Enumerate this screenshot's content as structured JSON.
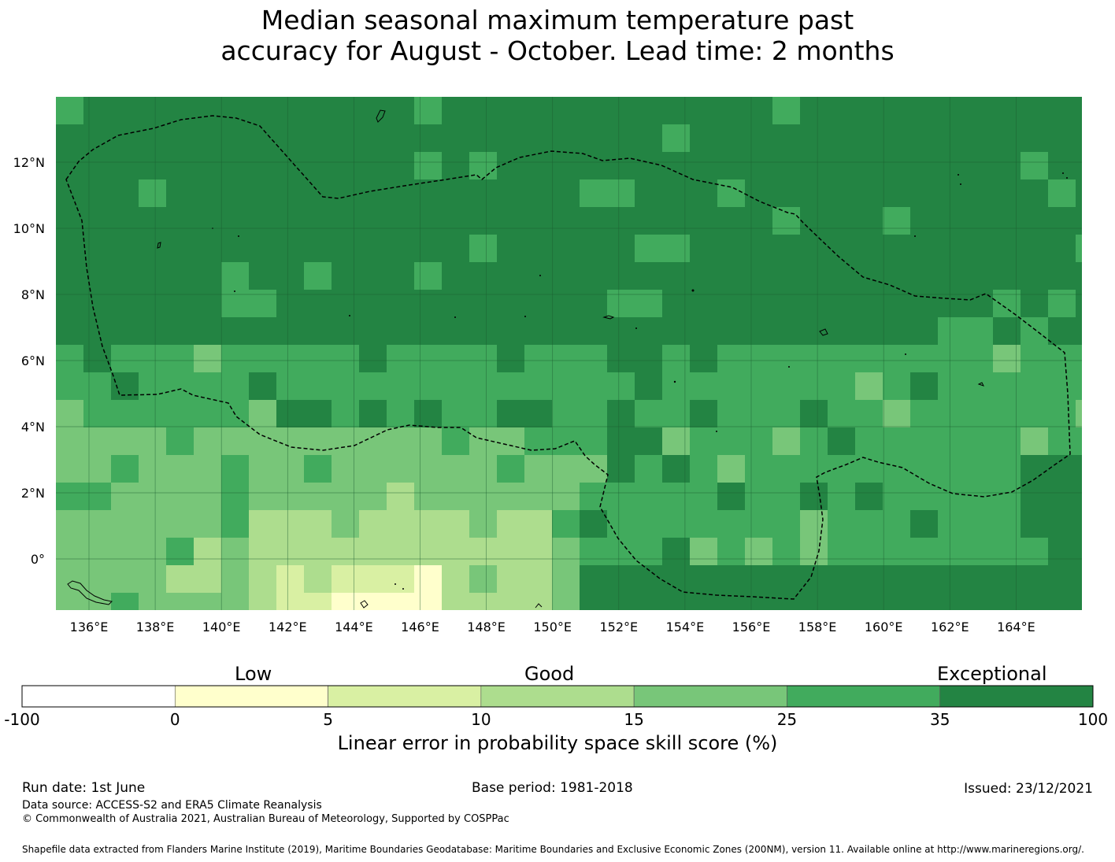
{
  "title_line1": "Median seasonal maximum temperature past",
  "title_line2": "accuracy for August - October. Lead time: 2 months",
  "map": {
    "lon_range": [
      135,
      166
    ],
    "lat_range": [
      -1.5,
      14
    ],
    "cell_size_deg": 0.8333,
    "lon_ticks": [
      "136°E",
      "138°E",
      "140°E",
      "142°E",
      "144°E",
      "146°E",
      "148°E",
      "150°E",
      "152°E",
      "154°E",
      "156°E",
      "158°E",
      "160°E",
      "162°E",
      "164°E"
    ],
    "lat_ticks": [
      "12°N",
      "10°N",
      "8°N",
      "6°N",
      "4°N",
      "2°N",
      "0°"
    ],
    "gridlines": true,
    "boundary": "dashed",
    "coastline_color": "#000000"
  },
  "colorbar": {
    "categories": [
      {
        "label": "Low"
      },
      {
        "label": "Good"
      },
      {
        "label": "Exceptional"
      }
    ],
    "bins": [
      {
        "from": "-100",
        "to": "0",
        "color": "#ffffff"
      },
      {
        "from": "0",
        "to": "5",
        "color": "#ffffcc"
      },
      {
        "from": "5",
        "to": "10",
        "color": "#d9f0a3"
      },
      {
        "from": "10",
        "to": "15",
        "color": "#addd8e"
      },
      {
        "from": "15",
        "to": "25",
        "color": "#78c679"
      },
      {
        "from": "25",
        "to": "35",
        "color": "#41ab5d"
      },
      {
        "from": "35",
        "to": "100",
        "color": "#238443"
      }
    ],
    "tick_labels": [
      "-100",
      "0",
      "5",
      "10",
      "15",
      "25",
      "35",
      "100"
    ],
    "title": "Linear error in probability space skill score (%)"
  },
  "footer": {
    "run_date": "Run date: 1st June",
    "base_period": "Base period: 1981-2018",
    "issued": "Issued: 23/12/2021",
    "data_source": "Data source: ACCESS-S2 and ERA5 Climate Reanalysis",
    "copyright": "© Commonwealth of Australia 2021, Australian Bureau of Meteorology, Supported by COSPPac",
    "shapefile": "Shapefile data extracted from Flanders Marine Institute (2019), Maritime Boundaries Geodatabase: Maritime Boundaries and Exclusive Economic Zones (200NM), version 11. Available online at http://www.marineregions.org/."
  }
}
